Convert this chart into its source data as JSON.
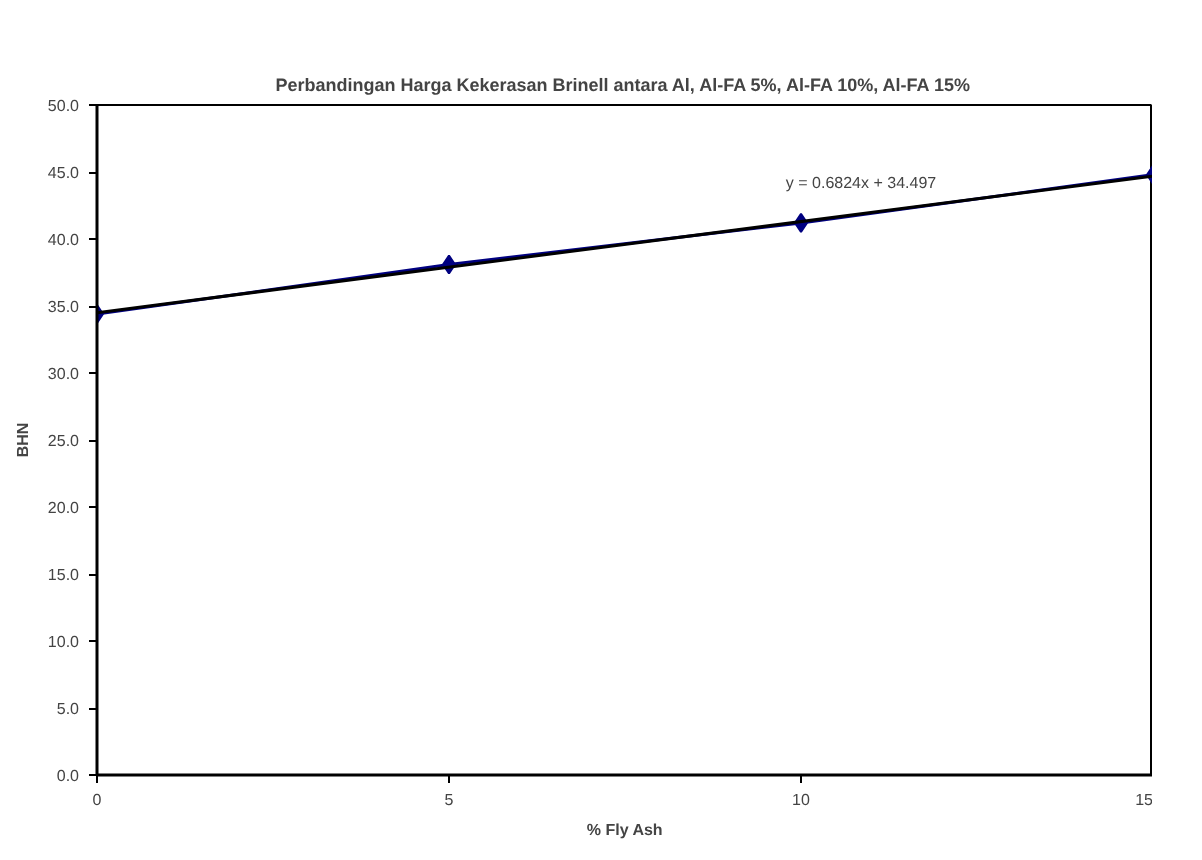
{
  "chart_data": {
    "type": "line",
    "title": "Perbandingan Harga Kekerasan Brinell antara Al, Al-FA 5%, Al-FA 10%, Al-FA 15%",
    "xlabel": "% Fly Ash",
    "ylabel": "BHN",
    "x": [
      0,
      5,
      10,
      15
    ],
    "series": [
      {
        "color": "#000080",
        "values": [
          34.4,
          38.1,
          41.2,
          44.8
        ],
        "marker": "diamond"
      },
      {
        "type": "line",
        "color": "#000000",
        "x": [
          0,
          15
        ],
        "values": [
          34.5,
          44.7
        ],
        "marker": "none"
      }
    ],
    "annotations": [
      "y = 0.6824x + 34.497"
    ],
    "xlim": [
      0,
      15
    ],
    "xticks": [
      0,
      5,
      10,
      15
    ],
    "ylim": [
      0,
      50
    ],
    "yticks": [
      {
        "value": 0,
        "label": "0.0"
      },
      {
        "value": 5,
        "label": "5.0"
      },
      {
        "value": 10,
        "label": "10.0"
      },
      {
        "value": 15,
        "label": "15.0"
      },
      {
        "value": 20,
        "label": "20.0"
      },
      {
        "value": 25,
        "label": "25.0"
      },
      {
        "value": 30,
        "label": "30.0"
      },
      {
        "value": 35,
        "label": "35.0"
      },
      {
        "value": 40,
        "label": "40.0"
      },
      {
        "value": 45,
        "label": "45.0"
      },
      {
        "value": 50,
        "label": "50.0"
      }
    ],
    "grid": false,
    "line_style": "solid"
  }
}
